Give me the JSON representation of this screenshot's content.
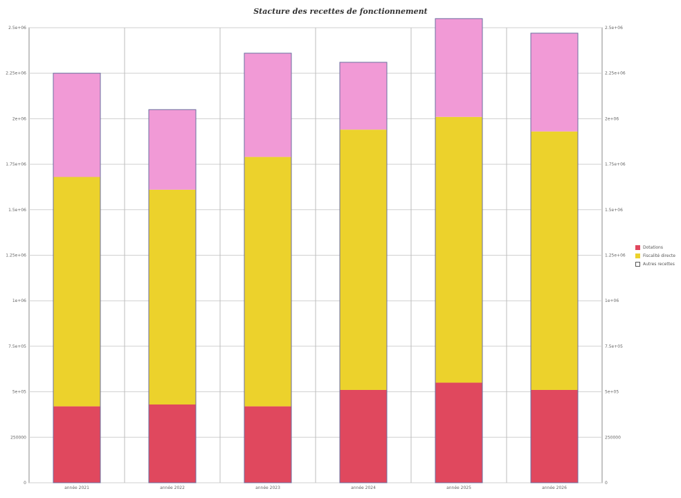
{
  "chart_data": {
    "type": "bar",
    "stacked": true,
    "title": "Stacture des recettes de fonctionnement",
    "categories": [
      "année 2021",
      "année 2022",
      "année 2023",
      "année 2024",
      "année 2025",
      "année 2026"
    ],
    "series": [
      {
        "name": "Dotations",
        "color": "#e0485e",
        "values": [
          420000,
          430000,
          420000,
          510000,
          550000,
          510000
        ]
      },
      {
        "name": "Fiscalité directe",
        "color": "#ecd22c",
        "values": [
          1260000,
          1180000,
          1370000,
          1430000,
          1460000,
          1420000
        ]
      },
      {
        "name": "Autres recettes",
        "color": "#f19ad6",
        "values": [
          570000,
          440000,
          570000,
          370000,
          540000,
          540000
        ]
      }
    ],
    "ylim": [
      0,
      2500000
    ],
    "yticks": [
      "0",
      "250000",
      "5e+05",
      "7.5e+05",
      "1e+06",
      "1.25e+06",
      "1.5e+06",
      "1.75e+06",
      "2e+06",
      "2.25e+06",
      "2.5e+06"
    ],
    "legend": "right",
    "grid": true
  }
}
